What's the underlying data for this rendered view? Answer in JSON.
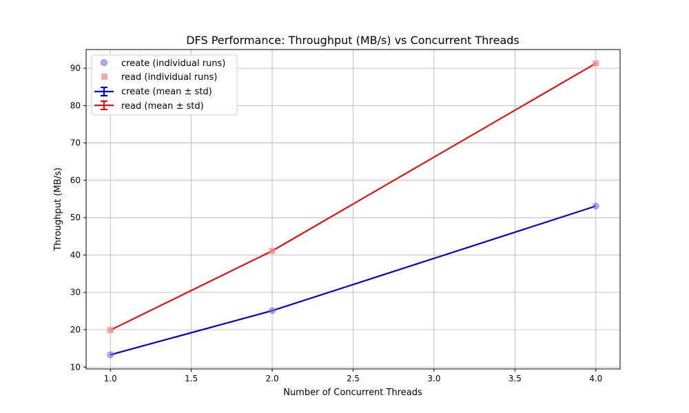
{
  "chart_data": {
    "type": "line",
    "title": "DFS Performance: Throughput (MB/s) vs Concurrent Threads",
    "xlabel": "Number of Concurrent Threads",
    "ylabel": "Throughput (MB/s)",
    "xlim": [
      0.85,
      4.15
    ],
    "ylim": [
      9.5,
      95
    ],
    "xticks": [
      1.0,
      1.5,
      2.0,
      2.5,
      3.0,
      3.5,
      4.0
    ],
    "xtick_labels": [
      "1.0",
      "1.5",
      "2.0",
      "2.5",
      "3.0",
      "3.5",
      "4.0"
    ],
    "yticks": [
      10,
      20,
      30,
      40,
      50,
      60,
      70,
      80,
      90
    ],
    "ytick_labels": [
      "10",
      "20",
      "30",
      "40",
      "50",
      "60",
      "70",
      "80",
      "90"
    ],
    "grid": true,
    "legend_position": "top-left",
    "scatter_series": [
      {
        "name": "create (individual runs)",
        "marker": "circle",
        "color": "#6b6bf0",
        "x": [
          1,
          2,
          4
        ],
        "y": [
          13.3,
          25.1,
          53.1
        ]
      },
      {
        "name": "read (individual runs)",
        "marker": "square",
        "color": "#f28b8b",
        "x": [
          1,
          2,
          4
        ],
        "y": [
          19.9,
          41.1,
          91.3
        ]
      }
    ],
    "series": [
      {
        "name": "create (mean ± std)",
        "color": "#0000cc",
        "x": [
          1,
          2,
          4
        ],
        "y": [
          13.3,
          25.1,
          53.1
        ]
      },
      {
        "name": "read (mean ± std)",
        "color": "#e31010",
        "x": [
          1,
          2,
          4
        ],
        "y": [
          19.9,
          41.1,
          91.3
        ]
      }
    ]
  }
}
